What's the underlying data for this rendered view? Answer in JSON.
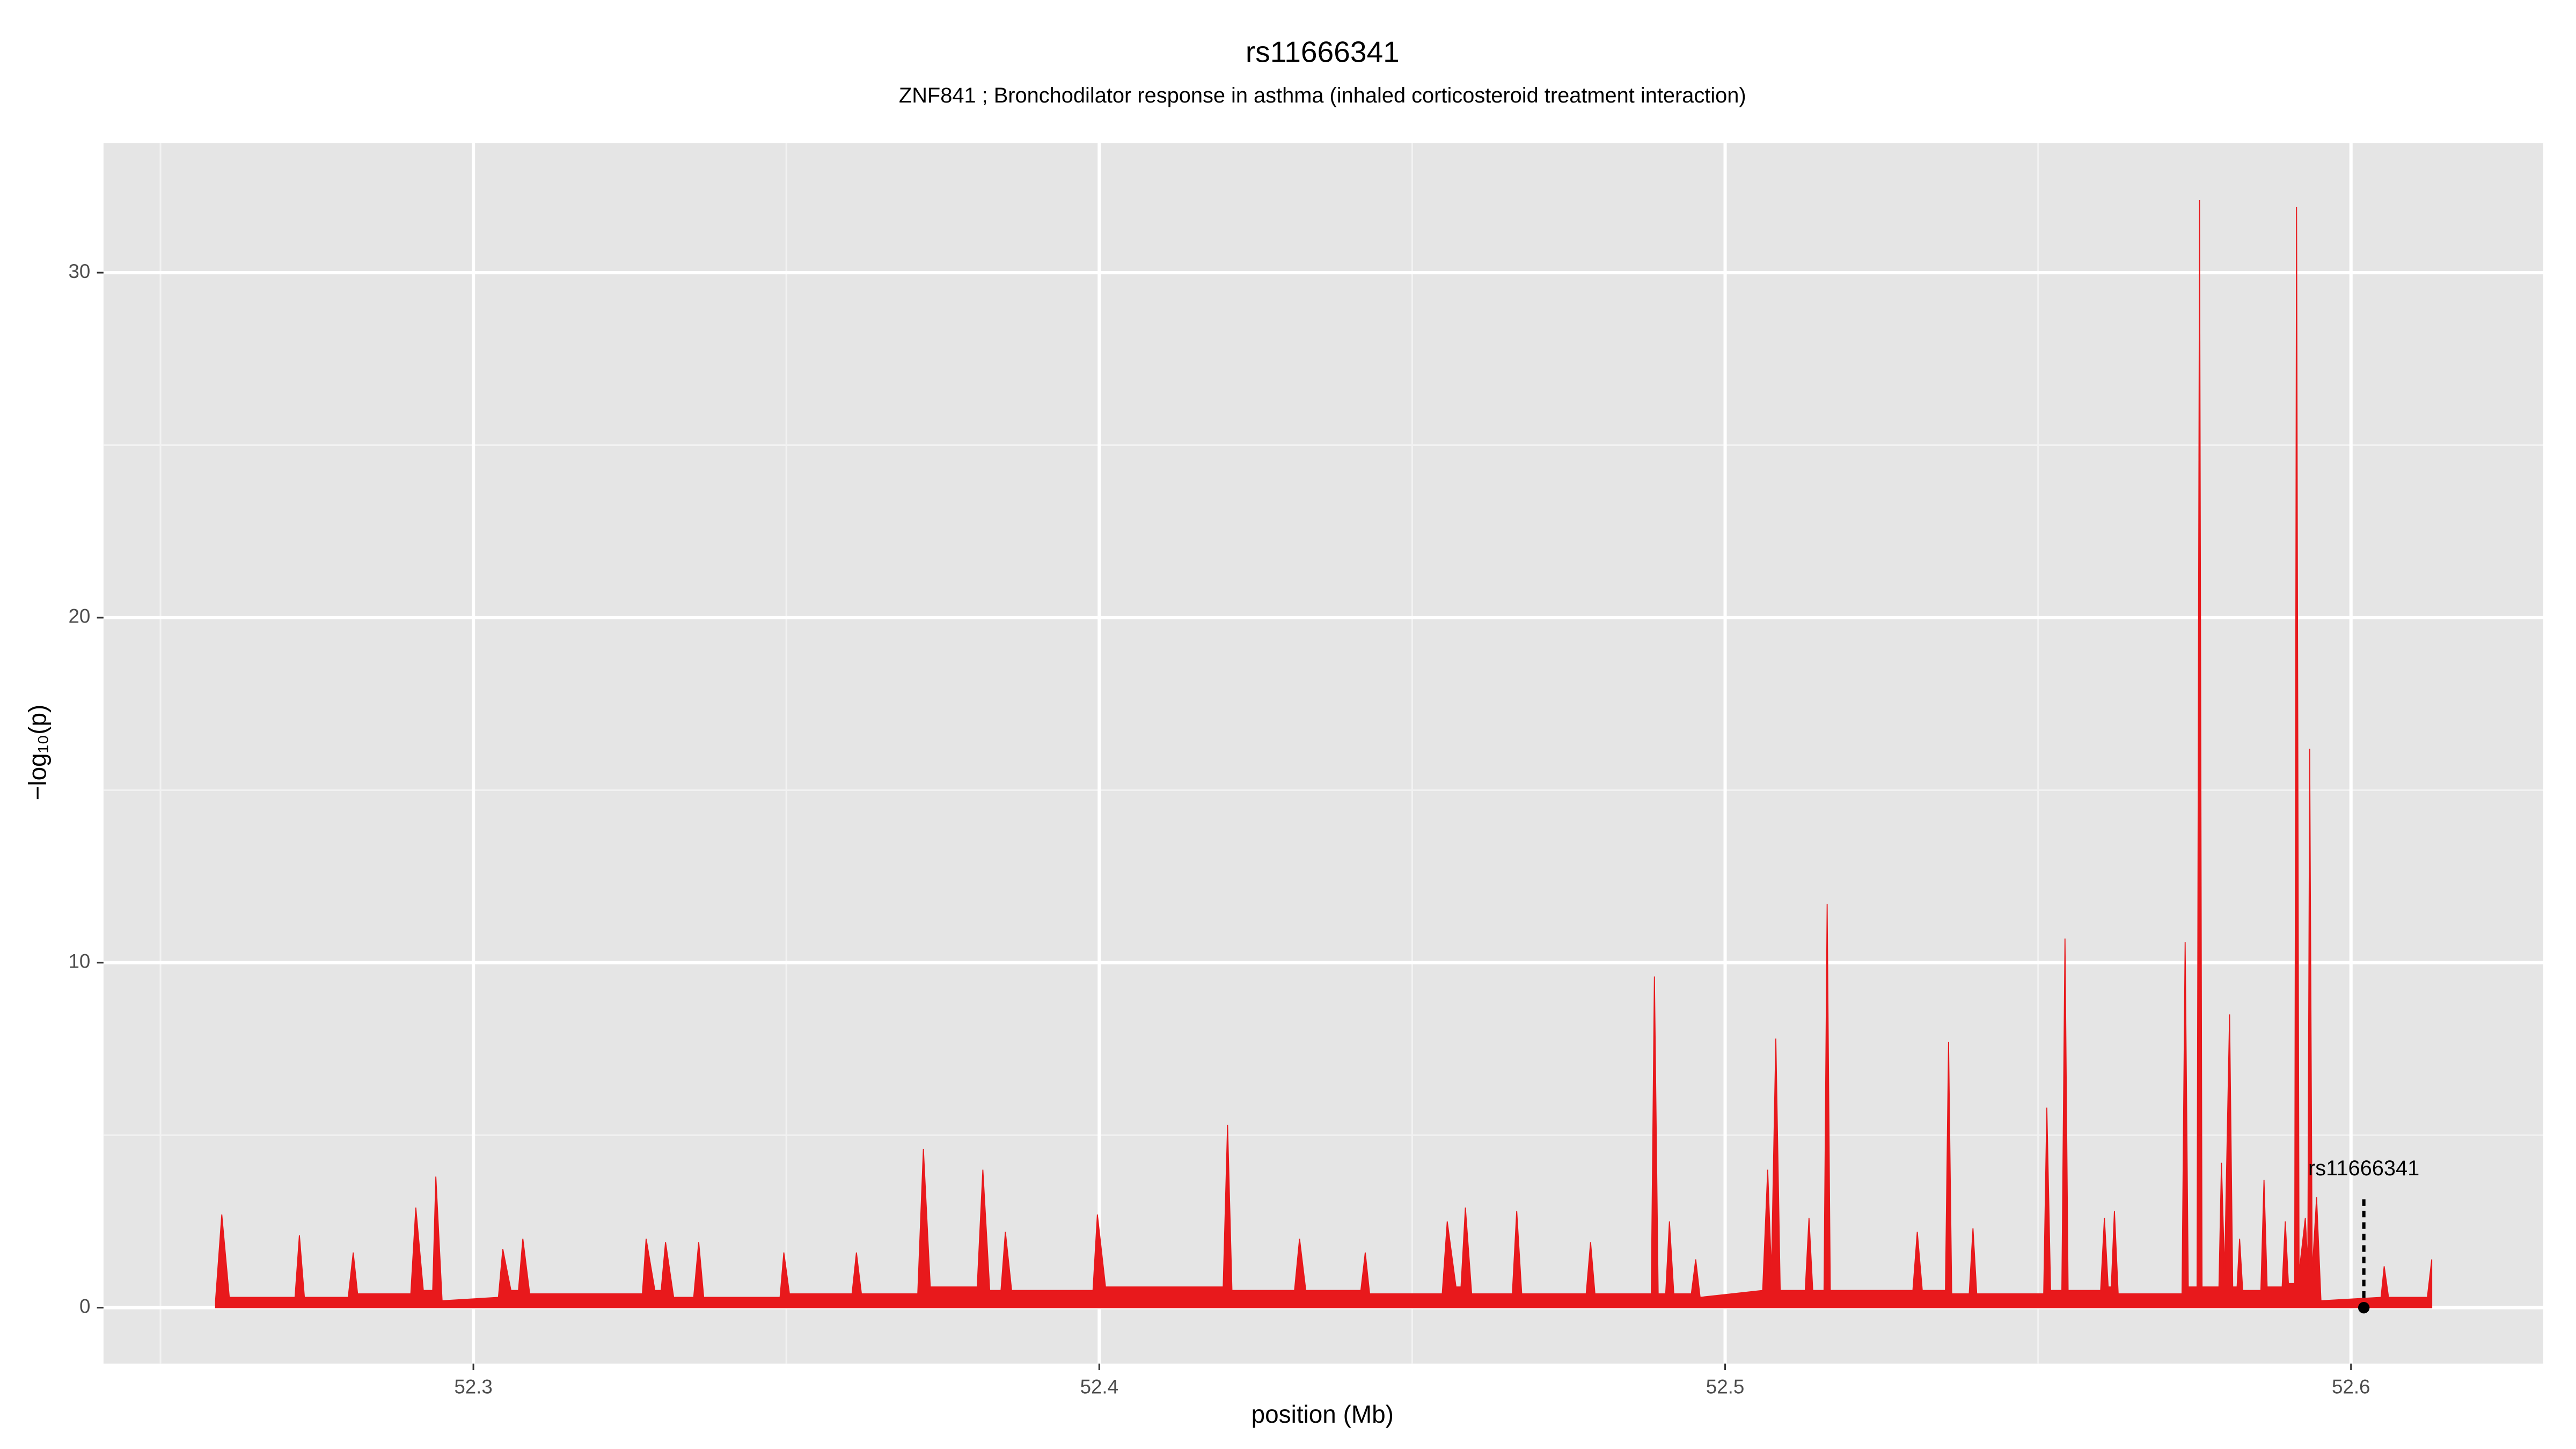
{
  "chart_data": {
    "type": "area",
    "title": "rs11666341",
    "subtitle": "ZNF841 ; Bronchodilator response in asthma (inhaled corticosteroid treatment interaction)",
    "xlabel": "position (Mb)",
    "ylabel": "−log₁₀(p)",
    "xlim": [
      52.2409,
      52.6307
    ],
    "ylim": [
      -1.62,
      33.76
    ],
    "xticks": [
      52.3,
      52.4,
      52.5,
      52.6
    ],
    "yticks": [
      0,
      10,
      20,
      30
    ],
    "grid": true,
    "series": [
      {
        "color": "#e8191c",
        "x": [
          52.2588,
          52.2598,
          52.261,
          52.2715,
          52.2722,
          52.273,
          52.28,
          52.2808,
          52.2815,
          52.29,
          52.2908,
          52.292,
          52.2935,
          52.294,
          52.295,
          52.304,
          52.3047,
          52.306,
          52.3072,
          52.3079,
          52.309,
          52.327,
          52.3276,
          52.329,
          52.33,
          52.3307,
          52.332,
          52.3352,
          52.336,
          52.3368,
          52.349,
          52.3496,
          52.3505,
          52.3605,
          52.3612,
          52.362,
          52.371,
          52.3719,
          52.373,
          52.3805,
          52.3814,
          52.3825,
          52.3843,
          52.385,
          52.386,
          52.399,
          52.3997,
          52.401,
          52.4198,
          52.4205,
          52.4212,
          52.4312,
          52.432,
          52.433,
          52.4418,
          52.4425,
          52.4432,
          52.4548,
          52.4556,
          52.457,
          52.4578,
          52.4585,
          52.4595,
          52.466,
          52.4667,
          52.4675,
          52.4778,
          52.4785,
          52.4792,
          52.4882,
          52.4887,
          52.4893,
          52.4905,
          52.4911,
          52.4918,
          52.4946,
          52.4953,
          52.496,
          52.506,
          52.5068,
          52.5074,
          52.5081,
          52.5088,
          52.5128,
          52.5134,
          52.514,
          52.5158,
          52.5163,
          52.5168,
          52.53,
          52.5307,
          52.5315,
          52.5352,
          52.5357,
          52.5362,
          52.539,
          52.5396,
          52.5402,
          52.5509,
          52.5514,
          52.552,
          52.5538,
          52.5543,
          52.5548,
          52.56,
          52.5606,
          52.5612,
          52.5617,
          52.5622,
          52.5628,
          52.573,
          52.5735,
          52.574,
          52.5754,
          52.5758,
          52.5762,
          52.5789,
          52.5793,
          52.5798,
          52.5806,
          52.5811,
          52.5818,
          52.5822,
          52.5827,
          52.5856,
          52.5861,
          52.5866,
          52.589,
          52.5895,
          52.59,
          52.591,
          52.5913,
          52.5917,
          52.5927,
          52.5931,
          52.5934,
          52.5938,
          52.5945,
          52.5952,
          52.6048,
          52.6053,
          52.606,
          52.6122,
          52.6129
        ],
        "values": [
          0.2,
          2.7,
          0.3,
          0.3,
          2.1,
          0.3,
          0.3,
          1.6,
          0.4,
          0.4,
          2.9,
          0.5,
          0.5,
          3.8,
          0.2,
          0.3,
          1.7,
          0.5,
          0.5,
          2.0,
          0.4,
          0.4,
          2.0,
          0.5,
          0.5,
          1.9,
          0.3,
          0.3,
          1.9,
          0.3,
          0.3,
          1.6,
          0.4,
          0.4,
          1.6,
          0.4,
          0.4,
          4.6,
          0.6,
          0.6,
          4.0,
          0.5,
          0.5,
          2.2,
          0.5,
          0.5,
          2.7,
          0.6,
          0.6,
          5.3,
          0.5,
          0.5,
          2.0,
          0.5,
          0.5,
          1.6,
          0.4,
          0.4,
          2.5,
          0.6,
          0.6,
          2.9,
          0.4,
          0.4,
          2.8,
          0.4,
          0.4,
          1.9,
          0.4,
          0.4,
          9.6,
          0.4,
          0.4,
          2.5,
          0.4,
          0.4,
          1.4,
          0.3,
          0.5,
          4.0,
          1.0,
          7.8,
          0.5,
          0.5,
          2.6,
          0.5,
          0.5,
          11.7,
          0.5,
          0.5,
          2.2,
          0.5,
          0.5,
          7.7,
          0.4,
          0.4,
          2.3,
          0.4,
          0.4,
          5.8,
          0.5,
          0.5,
          10.7,
          0.5,
          0.5,
          2.6,
          0.6,
          0.6,
          2.8,
          0.4,
          0.4,
          10.6,
          0.6,
          0.6,
          32.1,
          0.6,
          0.6,
          4.2,
          1.0,
          8.5,
          0.6,
          0.6,
          2.0,
          0.5,
          0.5,
          3.7,
          0.6,
          0.6,
          2.5,
          0.7,
          0.7,
          31.9,
          1.0,
          2.6,
          1.2,
          16.2,
          1.0,
          3.2,
          0.2,
          0.3,
          1.2,
          0.3,
          0.3,
          1.4
        ]
      }
    ],
    "annotation": {
      "text": "rs11666341",
      "x": 52.601,
      "y": 0
    }
  }
}
